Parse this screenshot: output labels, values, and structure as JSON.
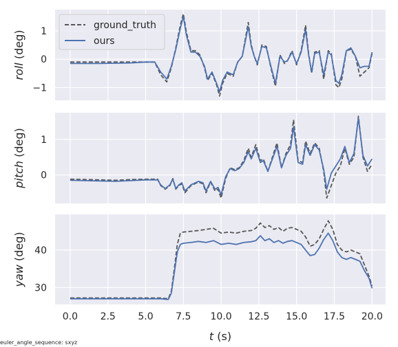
{
  "footnote": "euler_angle_sequence: sxyz",
  "colors": {
    "panel_bg": "#EAEAF2",
    "grid": "#FFFFFF",
    "ground_truth": "#555555",
    "ours": "#4C72B0"
  },
  "legend": {
    "ground_truth_label": "ground_truth",
    "ours_label": "ours",
    "placement": "upper-left of top panel"
  },
  "chart_data": [
    {
      "type": "line",
      "title": "",
      "ylabel_var": "roll",
      "ylabel_unit": " (deg)",
      "ylim": [
        -1.45,
        1.75
      ],
      "yticks": [
        -1,
        0,
        1
      ],
      "ytick_labels": [
        "−1",
        "0",
        "1"
      ],
      "xlim": [
        -1.0,
        20.9
      ],
      "grid": true,
      "series": [
        {
          "name": "ground_truth",
          "style": "dashed",
          "x": [
            0,
            1,
            2,
            3,
            4,
            5,
            5.6,
            6.0,
            6.4,
            6.7,
            7.0,
            7.3,
            7.5,
            7.7,
            8.0,
            8.3,
            8.6,
            8.9,
            9.1,
            9.4,
            9.7,
            9.9,
            10.1,
            10.4,
            10.8,
            11.1,
            11.4,
            11.8,
            12.0,
            12.2,
            12.4,
            12.7,
            13.0,
            13.3,
            13.6,
            13.9,
            14.2,
            14.4,
            14.7,
            15.0,
            15.3,
            15.6,
            15.8,
            16.0,
            16.2,
            16.5,
            16.8,
            17.1,
            17.3,
            17.6,
            17.8,
            18.0,
            18.3,
            18.6,
            18.9,
            19.2,
            19.5,
            19.8,
            20.0
          ],
          "y": [
            -0.1,
            -0.1,
            -0.1,
            -0.1,
            -0.1,
            -0.1,
            -0.1,
            -0.55,
            -0.8,
            -0.3,
            0.4,
            1.2,
            1.6,
            0.95,
            0.3,
            0.3,
            0.15,
            -0.3,
            -0.75,
            -0.5,
            -0.9,
            -1.3,
            -0.85,
            -0.5,
            -0.6,
            -0.1,
            0.1,
            1.3,
            0.5,
            0.1,
            -0.2,
            0.5,
            0.45,
            -0.3,
            -0.95,
            0.15,
            -0.15,
            -0.05,
            0.3,
            -0.2,
            0.3,
            1.2,
            0.2,
            -0.5,
            0.25,
            0.3,
            -0.7,
            0.3,
            0.2,
            -0.9,
            -1.0,
            -0.7,
            0.3,
            0.35,
            0.1,
            -0.6,
            -0.45,
            -0.3,
            0.2
          ]
        },
        {
          "name": "ours",
          "style": "solid",
          "x": [
            0,
            1,
            2,
            3,
            4,
            5,
            5.6,
            6.0,
            6.4,
            6.7,
            7.0,
            7.3,
            7.5,
            7.7,
            8.0,
            8.3,
            8.6,
            8.9,
            9.1,
            9.4,
            9.7,
            9.9,
            10.1,
            10.4,
            10.8,
            11.1,
            11.4,
            11.8,
            12.0,
            12.2,
            12.4,
            12.7,
            13.0,
            13.3,
            13.6,
            13.9,
            14.2,
            14.4,
            14.7,
            15.0,
            15.3,
            15.6,
            15.8,
            16.0,
            16.2,
            16.5,
            16.8,
            17.1,
            17.3,
            17.6,
            17.8,
            18.0,
            18.3,
            18.6,
            18.9,
            19.2,
            19.5,
            19.8,
            20.0
          ],
          "y": [
            -0.15,
            -0.15,
            -0.15,
            -0.14,
            -0.13,
            -0.1,
            -0.1,
            -0.45,
            -0.7,
            -0.25,
            0.35,
            1.1,
            1.5,
            0.85,
            0.25,
            0.25,
            0.1,
            -0.25,
            -0.7,
            -0.45,
            -0.85,
            -1.15,
            -0.75,
            -0.45,
            -0.55,
            -0.1,
            0.1,
            1.15,
            0.45,
            0.1,
            -0.15,
            0.45,
            0.4,
            -0.25,
            -0.85,
            0.1,
            -0.1,
            -0.05,
            0.25,
            -0.15,
            0.25,
            1.05,
            0.15,
            -0.45,
            0.2,
            0.25,
            -0.55,
            0.25,
            0.15,
            -0.75,
            -0.85,
            -0.55,
            0.3,
            0.4,
            0.1,
            -0.3,
            -0.25,
            -0.25,
            0.25
          ]
        }
      ]
    },
    {
      "type": "line",
      "title": "",
      "ylabel_var": "pitch",
      "ylabel_unit": " (deg)",
      "ylim": [
        -0.8,
        1.75
      ],
      "yticks": [
        0,
        1
      ],
      "ytick_labels": [
        "0",
        "1"
      ],
      "xlim": [
        -1.0,
        20.9
      ],
      "grid": true,
      "series": [
        {
          "name": "ground_truth",
          "style": "dashed",
          "x": [
            0,
            1,
            2,
            3,
            4,
            5,
            5.8,
            6.0,
            6.3,
            6.6,
            6.8,
            7.0,
            7.2,
            7.4,
            7.6,
            8.0,
            8.5,
            8.8,
            9.0,
            9.3,
            9.6,
            9.8,
            10.0,
            10.3,
            10.6,
            10.9,
            11.2,
            11.5,
            11.8,
            12.0,
            12.3,
            12.6,
            12.8,
            13.1,
            13.4,
            13.7,
            14.0,
            14.3,
            14.6,
            14.8,
            15.1,
            15.4,
            15.6,
            15.9,
            16.2,
            16.5,
            16.8,
            17.0,
            17.3,
            17.6,
            17.9,
            18.2,
            18.5,
            18.8,
            19.1,
            19.4,
            19.7,
            20.0
          ],
          "y": [
            -0.12,
            -0.13,
            -0.14,
            -0.15,
            -0.13,
            -0.12,
            -0.12,
            -0.3,
            -0.4,
            -0.3,
            -0.1,
            -0.4,
            -0.3,
            -0.25,
            -0.5,
            -0.3,
            -0.2,
            -0.25,
            -0.5,
            -0.2,
            -0.45,
            -0.4,
            -0.65,
            -0.1,
            0.2,
            0.15,
            0.2,
            0.4,
            0.75,
            0.5,
            0.85,
            0.4,
            0.45,
            0.1,
            0.5,
            0.9,
            0.2,
            0.6,
            0.85,
            1.55,
            0.4,
            0.35,
            0.95,
            0.6,
            0.9,
            0.75,
            0.1,
            -0.65,
            -0.3,
            0.05,
            0.25,
            0.75,
            0.3,
            0.5,
            1.65,
            0.5,
            0.1,
            0.3
          ]
        },
        {
          "name": "ours",
          "style": "solid",
          "x": [
            0,
            1,
            2,
            3,
            4,
            5,
            5.8,
            6.0,
            6.3,
            6.6,
            6.8,
            7.0,
            7.2,
            7.4,
            7.6,
            8.0,
            8.5,
            8.8,
            9.0,
            9.3,
            9.6,
            9.8,
            10.0,
            10.3,
            10.6,
            10.9,
            11.2,
            11.5,
            11.8,
            12.0,
            12.3,
            12.6,
            12.8,
            13.1,
            13.4,
            13.7,
            14.0,
            14.3,
            14.6,
            14.8,
            15.1,
            15.4,
            15.6,
            15.9,
            16.2,
            16.5,
            16.8,
            17.0,
            17.3,
            17.6,
            17.9,
            18.2,
            18.5,
            18.8,
            19.1,
            19.4,
            19.7,
            20.0
          ],
          "y": [
            -0.15,
            -0.16,
            -0.17,
            -0.18,
            -0.16,
            -0.14,
            -0.14,
            -0.28,
            -0.38,
            -0.28,
            -0.12,
            -0.38,
            -0.28,
            -0.22,
            -0.45,
            -0.28,
            -0.18,
            -0.22,
            -0.45,
            -0.18,
            -0.4,
            -0.35,
            -0.55,
            -0.05,
            0.18,
            0.12,
            0.18,
            0.35,
            0.65,
            0.45,
            0.75,
            0.35,
            0.4,
            0.1,
            0.45,
            0.8,
            0.2,
            0.55,
            0.75,
            1.35,
            0.35,
            0.3,
            0.85,
            0.55,
            0.85,
            0.7,
            0.15,
            -0.4,
            0.05,
            0.25,
            0.45,
            0.8,
            0.35,
            0.6,
            1.6,
            0.55,
            0.25,
            0.45
          ]
        }
      ]
    },
    {
      "type": "line",
      "title": "",
      "ylabel_var": "yaw",
      "ylabel_unit": " (deg)",
      "ylim": [
        25.5,
        49.5
      ],
      "yticks": [
        30,
        40
      ],
      "ytick_labels": [
        "30",
        "40"
      ],
      "xlim": [
        -1.0,
        20.9
      ],
      "xticks": [
        0,
        2.5,
        5,
        7.5,
        10,
        12.5,
        15,
        17.5,
        20
      ],
      "xtick_labels": [
        "0.0",
        "2.5",
        "5.0",
        "7.5",
        "10.0",
        "12.5",
        "15.0",
        "17.5",
        "20.0"
      ],
      "xlabel_var": "t",
      "xlabel_unit": " (s)",
      "grid": true,
      "series": [
        {
          "name": "ground_truth",
          "style": "dashed",
          "x": [
            0,
            1,
            2,
            3,
            4,
            5,
            6.0,
            6.5,
            6.7,
            6.9,
            7.1,
            7.3,
            7.5,
            8.0,
            8.5,
            9.0,
            9.5,
            10.0,
            10.5,
            11.0,
            11.5,
            12.0,
            12.3,
            12.6,
            12.9,
            13.2,
            13.5,
            13.8,
            14.1,
            14.4,
            14.7,
            15.0,
            15.3,
            15.6,
            15.9,
            16.2,
            16.5,
            16.8,
            17.1,
            17.4,
            17.7,
            18.0,
            18.3,
            18.6,
            18.9,
            19.2,
            19.5,
            19.8,
            20.0
          ],
          "y": [
            27.2,
            27.2,
            27.2,
            27.2,
            27.2,
            27.2,
            27.2,
            27.0,
            29.0,
            35.0,
            41.5,
            44.5,
            44.8,
            45.0,
            45.2,
            45.5,
            45.8,
            44.5,
            44.8,
            44.5,
            45.0,
            45.2,
            45.8,
            47.2,
            46.0,
            46.5,
            45.5,
            46.0,
            45.0,
            45.8,
            46.0,
            45.5,
            45.0,
            43.5,
            41.0,
            41.5,
            43.0,
            45.5,
            47.8,
            45.5,
            41.5,
            40.0,
            39.5,
            40.0,
            39.5,
            39.0,
            36.0,
            33.0,
            30.5
          ]
        },
        {
          "name": "ours",
          "style": "solid",
          "x": [
            0,
            1,
            2,
            3,
            4,
            5,
            6.0,
            6.5,
            6.7,
            6.9,
            7.1,
            7.3,
            7.5,
            8.0,
            8.5,
            9.0,
            9.5,
            10.0,
            10.5,
            11.0,
            11.5,
            12.0,
            12.3,
            12.6,
            12.9,
            13.2,
            13.5,
            13.8,
            14.1,
            14.4,
            14.7,
            15.0,
            15.3,
            15.6,
            15.9,
            16.2,
            16.5,
            16.8,
            17.1,
            17.4,
            17.7,
            18.0,
            18.3,
            18.6,
            18.9,
            19.2,
            19.5,
            19.8,
            20.0
          ],
          "y": [
            27.0,
            27.0,
            27.0,
            27.0,
            27.0,
            27.0,
            27.0,
            26.8,
            28.5,
            34.0,
            39.5,
            41.5,
            41.8,
            42.0,
            42.3,
            42.0,
            42.5,
            41.5,
            41.8,
            41.5,
            42.0,
            42.2,
            42.5,
            43.8,
            42.5,
            43.0,
            42.0,
            42.5,
            41.8,
            42.3,
            42.5,
            42.0,
            41.5,
            40.0,
            38.5,
            38.8,
            40.5,
            42.8,
            44.5,
            42.5,
            39.5,
            38.0,
            37.5,
            38.0,
            37.5,
            37.0,
            34.5,
            32.5,
            29.8
          ]
        }
      ]
    }
  ]
}
